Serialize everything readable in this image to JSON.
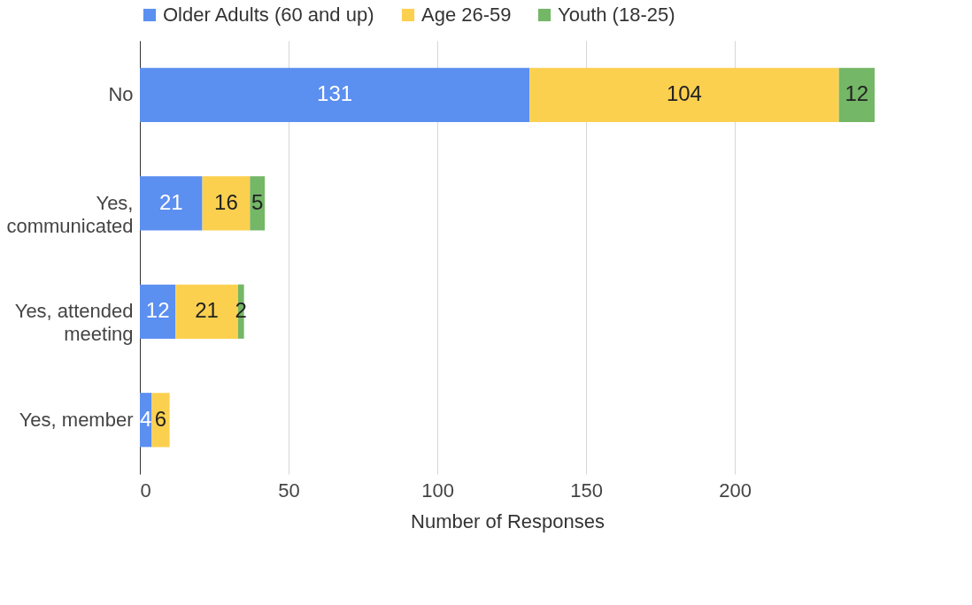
{
  "chart_data": {
    "type": "bar",
    "orientation": "horizontal",
    "stacked": true,
    "categories": [
      "No",
      "Yes, communicated",
      "Yes, attended meeting",
      "Yes, member"
    ],
    "series": [
      {
        "name": "Older Adults (60 and up)",
        "color": "#5b8ff0",
        "values": [
          131,
          21,
          12,
          4
        ]
      },
      {
        "name": "Age 26-59",
        "color": "#fcd04f",
        "values": [
          104,
          16,
          21,
          6
        ]
      },
      {
        "name": "Youth (18-25)",
        "color": "#74b766",
        "values": [
          12,
          5,
          2,
          null
        ]
      }
    ],
    "xlim": [
      0,
      247
    ],
    "xticks": [
      0,
      50,
      100,
      150,
      200
    ],
    "xlabel": "Number of Responses",
    "grid": "x",
    "legend": "top",
    "data_labels": true
  }
}
